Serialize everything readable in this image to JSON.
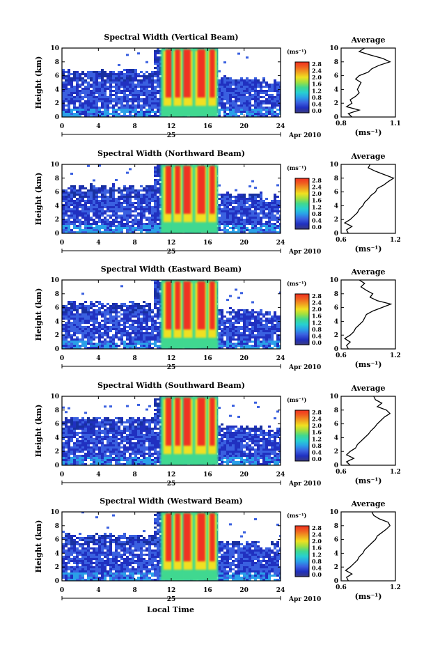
{
  "figure": {
    "xlabel": "Local Time",
    "date_label": "Apr 2010",
    "day_label": "25",
    "ylabel": "Height (km)",
    "units_label": "(ms⁻¹)",
    "avg_title": "Average",
    "avg_xlabel": "(ms⁻¹)"
  },
  "colorbar": {
    "ticks": [
      "0.0",
      "0.4",
      "0.8",
      "1.2",
      "1.6",
      "2.0",
      "2.4",
      "2.8"
    ],
    "stops": [
      "#3a3a80",
      "#2030c0",
      "#3a60e0",
      "#2aa0e8",
      "#28d0d0",
      "#40d890",
      "#a0e040",
      "#f0e020",
      "#f0a020",
      "#f06020",
      "#f03020"
    ]
  },
  "chart_data": [
    {
      "type": "heatmap",
      "title": "Spectral Width (Vertical Beam)",
      "x": {
        "min": 0,
        "max": 24,
        "ticks": [
          0,
          4,
          8,
          12,
          16,
          20,
          24
        ]
      },
      "y": {
        "min": 0,
        "max": 10,
        "ticks": [
          0,
          2,
          4,
          6,
          8,
          10
        ]
      },
      "avg": {
        "title": "Average",
        "xlim": [
          0.8,
          1.1
        ],
        "xticks": [
          "0.8",
          "1.1"
        ],
        "height": [
          0,
          0.5,
          1,
          1.5,
          2,
          2.5,
          3,
          3.5,
          4,
          4.5,
          5,
          5.5,
          6,
          6.5,
          7,
          7.5,
          8,
          8.5,
          9,
          9.5,
          10
        ],
        "value": [
          0.86,
          0.84,
          0.9,
          0.83,
          0.86,
          0.85,
          0.88,
          0.9,
          0.89,
          0.9,
          0.91,
          0.88,
          0.9,
          0.95,
          0.97,
          1.01,
          1.07,
          1.03,
          0.96,
          0.9,
          0.93
        ]
      }
    },
    {
      "type": "heatmap",
      "title": "Spectral Width (Northward Beam)",
      "x": {
        "min": 0,
        "max": 24,
        "ticks": [
          0,
          4,
          8,
          12,
          16,
          20,
          24
        ]
      },
      "y": {
        "min": 0,
        "max": 10,
        "ticks": [
          0,
          2,
          4,
          6,
          8,
          10
        ]
      },
      "avg": {
        "title": "Average",
        "xlim": [
          0.6,
          1.2
        ],
        "xticks": [
          "0.6",
          "1.2"
        ],
        "height": [
          0,
          0.5,
          1,
          1.5,
          2,
          2.5,
          3,
          3.5,
          4,
          4.5,
          5,
          5.5,
          6,
          6.5,
          7,
          7.5,
          8,
          8.5,
          9,
          9.5,
          10
        ],
        "value": [
          0.68,
          0.66,
          0.72,
          0.64,
          0.7,
          0.74,
          0.78,
          0.8,
          0.84,
          0.86,
          0.9,
          0.93,
          0.98,
          1.0,
          1.07,
          1.12,
          1.18,
          1.08,
          0.98,
          0.9,
          0.92
        ]
      }
    },
    {
      "type": "heatmap",
      "title": "Spectral Width (Eastward Beam)",
      "x": {
        "min": 0,
        "max": 24,
        "ticks": [
          0,
          4,
          8,
          12,
          16,
          20,
          24
        ]
      },
      "y": {
        "min": 0,
        "max": 10,
        "ticks": [
          0,
          2,
          4,
          6,
          8,
          10
        ]
      },
      "avg": {
        "title": "Average",
        "xlim": [
          0.6,
          1.2
        ],
        "xticks": [
          "0.6",
          "1.2"
        ],
        "height": [
          0,
          0.5,
          1,
          1.5,
          2,
          2.5,
          3,
          3.5,
          4,
          4.5,
          5,
          5.5,
          6,
          6.5,
          7,
          7.5,
          8,
          8.5,
          9,
          9.5,
          10
        ],
        "value": [
          0.68,
          0.66,
          0.7,
          0.64,
          0.7,
          0.74,
          0.76,
          0.8,
          0.84,
          0.86,
          0.88,
          0.95,
          1.05,
          1.15,
          1.0,
          0.92,
          0.95,
          0.88,
          0.82,
          0.86,
          0.8
        ]
      }
    },
    {
      "type": "heatmap",
      "title": "Spectral Width (Southward Beam)",
      "x": {
        "min": 0,
        "max": 24,
        "ticks": [
          0,
          4,
          8,
          12,
          16,
          20,
          24
        ]
      },
      "y": {
        "min": 0,
        "max": 10,
        "ticks": [
          0,
          2,
          4,
          6,
          8,
          10
        ]
      },
      "avg": {
        "title": "Average",
        "xlim": [
          0.6,
          1.2
        ],
        "xticks": [
          "0.6",
          "1.2"
        ],
        "height": [
          0,
          0.5,
          1,
          1.5,
          2,
          2.5,
          3,
          3.5,
          4,
          4.5,
          5,
          5.5,
          6,
          6.5,
          7,
          7.5,
          8,
          8.5,
          9,
          9.5,
          10
        ],
        "value": [
          0.7,
          0.66,
          0.74,
          0.66,
          0.7,
          0.76,
          0.78,
          0.82,
          0.86,
          0.9,
          0.93,
          0.97,
          1.0,
          1.04,
          1.08,
          1.14,
          1.1,
          1.0,
          1.05,
          0.98,
          0.96
        ]
      }
    },
    {
      "type": "heatmap",
      "title": "Spectral Width (Westward Beam)",
      "x": {
        "min": 0,
        "max": 24,
        "ticks": [
          0,
          4,
          8,
          12,
          16,
          20,
          24
        ]
      },
      "y": {
        "min": 0,
        "max": 10,
        "ticks": [
          0,
          2,
          4,
          6,
          8,
          10
        ]
      },
      "avg": {
        "title": "Average",
        "xlim": [
          0.6,
          1.2
        ],
        "xticks": [
          "0.6",
          "1.2"
        ],
        "height": [
          0,
          0.5,
          1,
          1.5,
          2,
          2.5,
          3,
          3.5,
          4,
          4.5,
          5,
          5.5,
          6,
          6.5,
          7,
          7.5,
          8,
          8.5,
          9,
          9.5,
          10
        ],
        "value": [
          0.68,
          0.66,
          0.72,
          0.65,
          0.7,
          0.74,
          0.78,
          0.8,
          0.84,
          0.86,
          0.9,
          0.94,
          0.98,
          1.0,
          1.05,
          1.1,
          1.14,
          1.12,
          1.02,
          0.96,
          0.94
        ]
      }
    }
  ]
}
